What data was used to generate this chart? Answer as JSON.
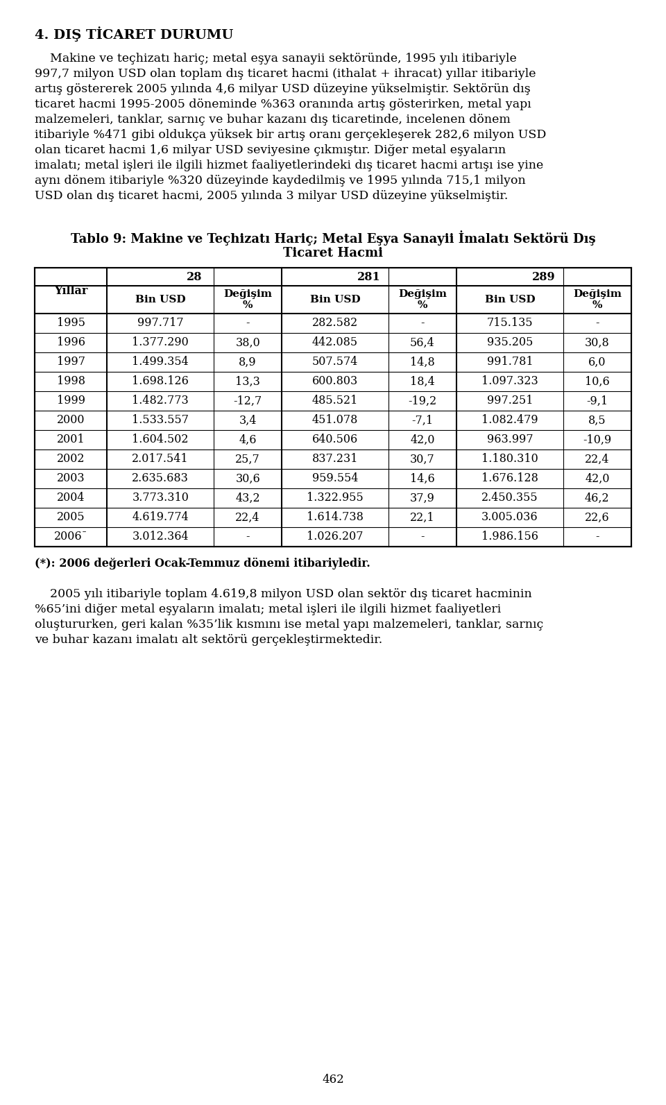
{
  "title_section": "4. DIŞ TİCARET DURUMU",
  "para1_lines": [
    "    Makine ve teçhizatı hariç; metal eşya sanayii sektöründe, 1995 yılı itibariyle",
    "997,7 milyon USD olan toplam dış ticaret hacmi (ithalat + ihracat) yıllar itibariyle",
    "artış göstererek 2005 yılında 4,6 milyar USD düzeyine yükselmiştir. Sektörün dış",
    "ticaret hacmi 1995-2005 döneminde %363 oranında artış gösterirken, metal yapı",
    "malzemeleri, tanklar, sarnıç ve buhar kazanı dış ticaretinde, incelenen dönem",
    "itibariyle %471 gibi oldukça yüksek bir artış oranı gerçekleşerek 282,6 milyon USD",
    "olan ticaret hacmi 1,6 milyar USD seviyesine çıkmıştır. Diğer metal eşyaların",
    "imalatı; metal işleri ile ilgili hizmet faaliyetlerindeki dış ticaret hacmi artışı ise yine",
    "aynı dönem itibariyle %320 düzeyinde kaydedilmiş ve 1995 yılında 715,1 milyon",
    "USD olan dış ticaret hacmi, 2005 yılında 3 milyar USD düzeyine yükselmiştir."
  ],
  "table_title_line1": "Tablo 9: Makine ve Teçhizatı Hariç; Metal Eşya Sanayii İmalatı Sektörü Dış",
  "table_title_line2": "Ticaret Hacmi",
  "col_groups": [
    "28",
    "281",
    "289"
  ],
  "row_label": "Yıllar",
  "rows": [
    {
      "year": "1995",
      "b28": "997.717",
      "d28": "-",
      "b281": "282.582",
      "d281": "-",
      "b289": "715.135",
      "d289": "-"
    },
    {
      "year": "1996",
      "b28": "1.377.290",
      "d28": "38,0",
      "b281": "442.085",
      "d281": "56,4",
      "b289": "935.205",
      "d289": "30,8"
    },
    {
      "year": "1997",
      "b28": "1.499.354",
      "d28": "8,9",
      "b281": "507.574",
      "d281": "14,8",
      "b289": "991.781",
      "d289": "6,0"
    },
    {
      "year": "1998",
      "b28": "1.698.126",
      "d28": "13,3",
      "b281": "600.803",
      "d281": "18,4",
      "b289": "1.097.323",
      "d289": "10,6"
    },
    {
      "year": "1999",
      "b28": "1.482.773",
      "d28": "-12,7",
      "b281": "485.521",
      "d281": "-19,2",
      "b289": "997.251",
      "d289": "-9,1"
    },
    {
      "year": "2000",
      "b28": "1.533.557",
      "d28": "3,4",
      "b281": "451.078",
      "d281": "-7,1",
      "b289": "1.082.479",
      "d289": "8,5"
    },
    {
      "year": "2001",
      "b28": "1.604.502",
      "d28": "4,6",
      "b281": "640.506",
      "d281": "42,0",
      "b289": "963.997",
      "d289": "-10,9"
    },
    {
      "year": "2002",
      "b28": "2.017.541",
      "d28": "25,7",
      "b281": "837.231",
      "d281": "30,7",
      "b289": "1.180.310",
      "d289": "22,4"
    },
    {
      "year": "2003",
      "b28": "2.635.683",
      "d28": "30,6",
      "b281": "959.554",
      "d281": "14,6",
      "b289": "1.676.128",
      "d289": "42,0"
    },
    {
      "year": "2004",
      "b28": "3.773.310",
      "d28": "43,2",
      "b281": "1.322.955",
      "d281": "37,9",
      "b289": "2.450.355",
      "d289": "46,2"
    },
    {
      "year": "2005",
      "b28": "4.619.774",
      "d28": "22,4",
      "b281": "1.614.738",
      "d281": "22,1",
      "b289": "3.005.036",
      "d289": "22,6"
    },
    {
      "year": "2006ˉ",
      "b28": "3.012.364",
      "d28": "-",
      "b281": "1.026.207",
      "d281": "-",
      "b289": "1.986.156",
      "d289": "-"
    }
  ],
  "footnote": "(*): 2006 değerleri Ocak-Temmuz dönemi itibariyledir.",
  "para2_lines": [
    "    2005 yılı itibariyle toplam 4.619,8 milyon USD olan sektör dış ticaret hacminin",
    "%65’ini diğer metal eşyaların imalatı; metal işleri ile ilgili hizmet faaliyetleri",
    "oluştururken, geri kalan %35’lik kısmını ise metal yapı malzemeleri, tanklar, sarnıç",
    "ve buhar kazanı imalatı alt sektörü gerçekleştirmektedir."
  ],
  "page_num": "462",
  "bg_color": "#ffffff",
  "text_color": "#000000",
  "font_size_title": 14,
  "font_size_body": 12.5,
  "font_size_table_header": 11.5,
  "font_size_table_data": 11.5,
  "font_size_page": 12
}
